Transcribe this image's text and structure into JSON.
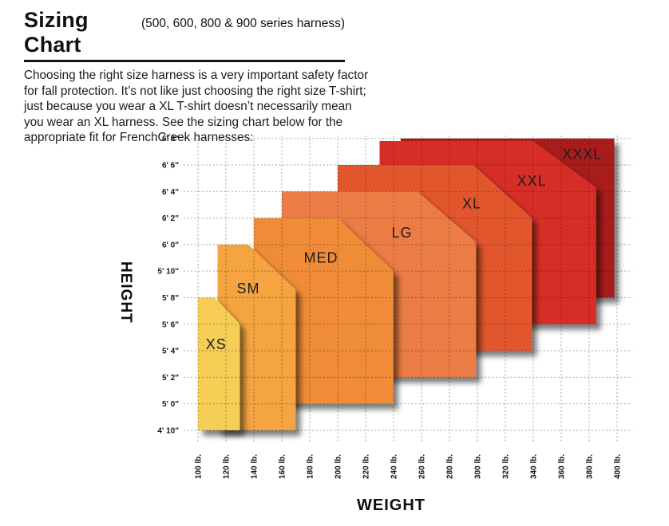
{
  "header": {
    "title": "Sizing Chart",
    "subtitle": "(500, 600, 800 & 900 series harness)",
    "description": "Choosing the right size harness is a very important safety factor\nfor fall protection. It’s not like just choosing the right size T-shirt;\njust because you wear a XL T-shirt doesn’t necessarily mean\nyou wear an XL harness. See the sizing chart below for the\nappropriate fit for FrenchCreek harnesses:"
  },
  "chart_data": {
    "type": "area",
    "title": "",
    "xlabel": "WEIGHT",
    "ylabel": "HEIGHT",
    "x_unit": "lb",
    "y_unit": "inches",
    "grid": true,
    "x_range_lb": [
      100,
      400
    ],
    "y_range_inches": [
      58,
      80
    ],
    "x_values": [
      100,
      120,
      140,
      160,
      180,
      200,
      220,
      240,
      260,
      280,
      300,
      320,
      340,
      360,
      380,
      400
    ],
    "x_tick_labels": [
      "100 lb.",
      "120 lb.",
      "140 lb.",
      "160 lb.",
      "180 lb.",
      "200 lb.",
      "220 lb.",
      "240 lb.",
      "260 lb.",
      "280 lb.",
      "300 lb.",
      "320 lb.",
      "340 lb.",
      "360 lb.",
      "380 lb.",
      "400 lb."
    ],
    "y_values_inches": [
      80,
      78,
      76,
      74,
      72,
      70,
      68,
      66,
      64,
      62,
      60,
      58
    ],
    "y_tick_labels": [
      "6' 8\"",
      "6' 6\"",
      "6' 4\"",
      "6' 2\"",
      "6' 0\"",
      "5' 10\"",
      "5' 8\"",
      "5' 6\"",
      "5' 4\"",
      "5' 2\"",
      "5' 0\"",
      "4' 10\""
    ],
    "series": [
      {
        "name": "XXXL",
        "color": "#A91B1E",
        "polygon": [
          [
            245,
            68
          ],
          [
            245,
            80
          ],
          [
            398,
            80
          ],
          [
            398,
            68
          ]
        ],
        "label_pos": [
          375,
          78.8
        ]
      },
      {
        "name": "XXL",
        "color": "#D62D28",
        "polygon": [
          [
            230,
            66
          ],
          [
            230,
            79.8
          ],
          [
            340,
            79.8
          ],
          [
            385,
            76.3
          ],
          [
            385,
            66
          ]
        ],
        "label_pos": [
          339,
          76.8
        ]
      },
      {
        "name": "XL",
        "color": "#E2572F",
        "polygon": [
          [
            200,
            64
          ],
          [
            200,
            78
          ],
          [
            297,
            78
          ],
          [
            339,
            74
          ],
          [
            339,
            64
          ]
        ],
        "label_pos": [
          296,
          75.1
        ]
      },
      {
        "name": "LG",
        "color": "#EC7C45",
        "polygon": [
          [
            160,
            62
          ],
          [
            160,
            76
          ],
          [
            257,
            76
          ],
          [
            299,
            72.2
          ],
          [
            299,
            62
          ]
        ],
        "label_pos": [
          246,
          72.9
        ]
      },
      {
        "name": "MED",
        "color": "#F08C37",
        "polygon": [
          [
            140,
            60
          ],
          [
            140,
            74
          ],
          [
            200,
            74
          ],
          [
            240,
            70
          ],
          [
            240,
            60
          ]
        ],
        "label_pos": [
          188,
          71
        ]
      },
      {
        "name": "SM",
        "color": "#F4A43F",
        "polygon": [
          [
            114,
            58
          ],
          [
            114,
            72
          ],
          [
            136,
            72
          ],
          [
            170,
            68.6
          ],
          [
            170,
            58
          ]
        ],
        "label_pos": [
          136,
          68.7
        ]
      },
      {
        "name": "XS",
        "color": "#F6CE55",
        "polygon": [
          [
            100,
            58
          ],
          [
            100,
            68
          ],
          [
            112,
            68
          ],
          [
            130,
            66
          ],
          [
            130,
            58
          ]
        ],
        "label_pos": [
          113,
          64.5
        ]
      }
    ]
  }
}
